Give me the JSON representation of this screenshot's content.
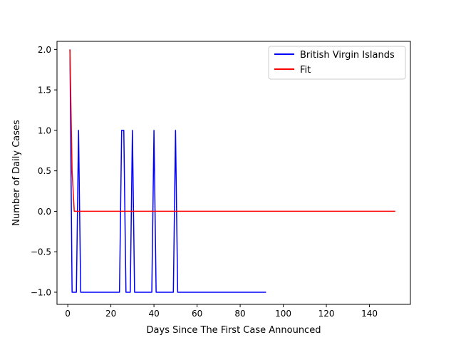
{
  "chart_data": {
    "type": "line",
    "title": "",
    "xlabel": "Days Since The First Case Announced",
    "ylabel": "Number of Daily Cases",
    "xlim": [
      -5,
      159
    ],
    "ylim": [
      -1.15,
      2.1
    ],
    "xticks": [
      0,
      20,
      40,
      60,
      80,
      100,
      120,
      140
    ],
    "xtick_labels": [
      "0",
      "20",
      "40",
      "60",
      "80",
      "100",
      "120",
      "140"
    ],
    "yticks": [
      -1.0,
      -0.5,
      0.0,
      0.5,
      1.0,
      1.5,
      2.0
    ],
    "ytick_labels": [
      "−1.0",
      "−0.5",
      "0.0",
      "0.5",
      "1.0",
      "1.5",
      "2.0"
    ],
    "grid": false,
    "legend_position": "top-right",
    "series": [
      {
        "name": "British Virgin Islands",
        "color": "#0000ff",
        "x": [
          1,
          2,
          3,
          4,
          5,
          6,
          7,
          8,
          9,
          10,
          11,
          12,
          13,
          14,
          15,
          16,
          17,
          18,
          19,
          20,
          21,
          22,
          23,
          24,
          25,
          26,
          27,
          28,
          29,
          30,
          31,
          32,
          33,
          34,
          35,
          36,
          37,
          38,
          39,
          40,
          41,
          42,
          43,
          44,
          45,
          46,
          47,
          48,
          49,
          50,
          51,
          52,
          53,
          54,
          55,
          56,
          57,
          58,
          59,
          60,
          61,
          62,
          63,
          64,
          65,
          66,
          67,
          68,
          69,
          70,
          71,
          72,
          73,
          74,
          75,
          76,
          77,
          78,
          79,
          80,
          81,
          82,
          83,
          84,
          85,
          86,
          87,
          88,
          89,
          90,
          91,
          92
        ],
        "y": [
          2,
          -1,
          -1,
          -1,
          1,
          -1,
          -1,
          -1,
          -1,
          -1,
          -1,
          -1,
          -1,
          -1,
          -1,
          -1,
          -1,
          -1,
          -1,
          -1,
          -1,
          -1,
          -1,
          -1,
          1,
          1,
          -1,
          -1,
          -1,
          1,
          -1,
          -1,
          -1,
          -1,
          -1,
          -1,
          -1,
          -1,
          -1,
          1,
          -1,
          -1,
          -1,
          -1,
          -1,
          -1,
          -1,
          -1,
          -1,
          1,
          -1,
          -1,
          -1,
          -1,
          -1,
          -1,
          -1,
          -1,
          -1,
          -1,
          -1,
          -1,
          -1,
          -1,
          -1,
          -1,
          -1,
          -1,
          -1,
          -1,
          -1,
          -1,
          -1,
          -1,
          -1,
          -1,
          -1,
          -1,
          -1,
          -1,
          -1,
          -1,
          -1,
          -1,
          -1,
          -1,
          -1,
          -1,
          -1,
          -1,
          -1,
          -1
        ]
      },
      {
        "name": "Fit",
        "color": "#ff0000",
        "x": [
          1,
          2,
          3,
          152
        ],
        "y": [
          2,
          0.5,
          0,
          0
        ]
      }
    ]
  }
}
